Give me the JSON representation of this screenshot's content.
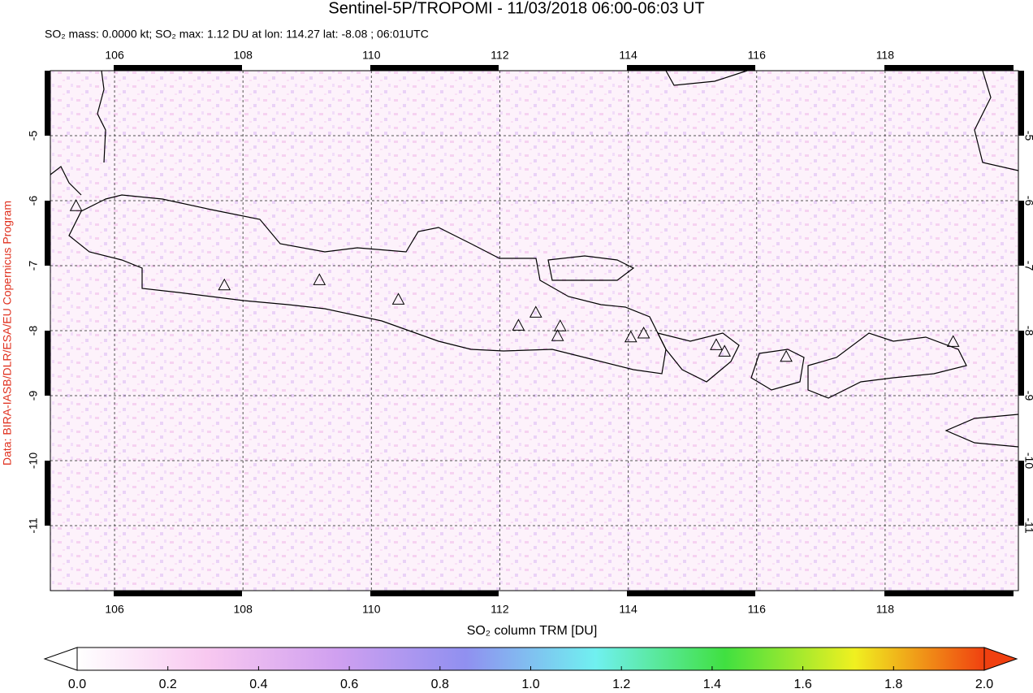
{
  "chart_data": {
    "type": "map",
    "title": "Sentinel-5P/TROPOMI - 11/03/2018 06:00-06:03 UT",
    "subtitle": "SO₂ mass: 0.0000 kt; SO₂ max: 1.12 DU at lon: 114.27 lat: -8.08 ; 06:01UTC",
    "credit": "Data: BIRA-IASB/DLR/ESA/EU Copernicus Program",
    "colorbar_title": "SO₂ column TRM [DU]",
    "xlim": [
      105,
      120
    ],
    "ylim": [
      -12,
      -4
    ],
    "xticks": [
      106,
      108,
      110,
      112,
      114,
      116,
      118
    ],
    "yticks": [
      -5,
      -6,
      -7,
      -8,
      -9,
      -10,
      -11
    ],
    "grid": true,
    "volcanoes": {
      "lon": [
        105.4,
        107.71,
        109.19,
        110.42,
        112.29,
        112.56,
        112.94,
        112.9,
        114.04,
        114.24,
        115.37,
        115.5,
        116.46,
        119.06
      ],
      "lat": [
        -6.09,
        -7.31,
        -7.23,
        -7.53,
        -7.93,
        -7.73,
        -7.94,
        -8.09,
        -8.11,
        -8.05,
        -8.23,
        -8.33,
        -8.41,
        -8.18
      ]
    },
    "colorbar": {
      "lim": [
        0,
        2
      ],
      "ticks": [
        {
          "value": 0,
          "label": "0.0"
        },
        {
          "value": 0.2,
          "label": "0.2"
        },
        {
          "value": 0.4,
          "label": "0.4"
        },
        {
          "value": 0.6,
          "label": "0.6"
        },
        {
          "value": 0.8,
          "label": "0.8"
        },
        {
          "value": 1.0,
          "label": "1.0"
        },
        {
          "value": 1.2,
          "label": "1.2"
        },
        {
          "value": 1.4,
          "label": "1.4"
        },
        {
          "value": 1.6,
          "label": "1.6"
        },
        {
          "value": 1.8,
          "label": "1.8"
        },
        {
          "value": 2.0,
          "label": "2.0"
        }
      ],
      "colors": [
        "#ffffff",
        "#f8c8f0",
        "#d0a0f0",
        "#9090f0",
        "#70f0f0",
        "#40e040",
        "#f0f020",
        "#f04010"
      ]
    }
  }
}
